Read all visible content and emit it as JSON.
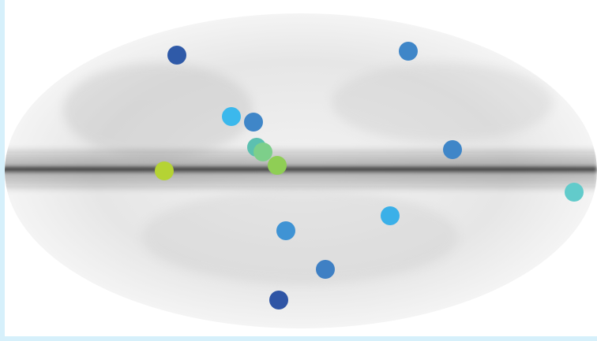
{
  "markers": [
    {
      "color": "#2f5aa8"
    },
    {
      "color": "#3f86c8"
    },
    {
      "color": "#3bb8ec"
    },
    {
      "color": "#3f86c8"
    },
    {
      "color": "#5cc0b0"
    },
    {
      "color": "#7dcf8a"
    },
    {
      "color": "#8fce55"
    },
    {
      "color": "#b5d334"
    },
    {
      "color": "#3f86c8"
    },
    {
      "color": "#62cbcb"
    },
    {
      "color": "#3bb0e8"
    },
    {
      "color": "#3f93d4"
    },
    {
      "color": "#3f80c4"
    },
    {
      "color": "#2f55a5"
    }
  ]
}
